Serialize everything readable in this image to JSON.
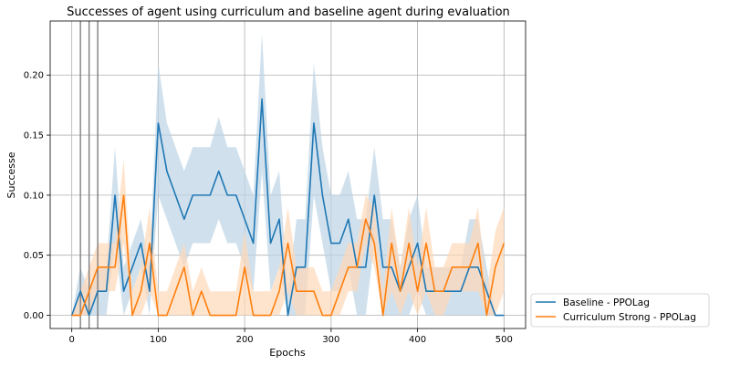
{
  "chart_data": {
    "type": "line",
    "title": "Successes of agent using curriculum and baseline agent during evaluation",
    "xlabel": "Epochs",
    "ylabel": "Successe",
    "xlim": [
      -25,
      525
    ],
    "ylim": [
      -0.011,
      0.245
    ],
    "xticks": [
      0,
      100,
      200,
      300,
      400,
      500
    ],
    "yticks": [
      0.0,
      0.05,
      0.1,
      0.15,
      0.2
    ],
    "xtick_labels": [
      "0",
      "100",
      "200",
      "300",
      "400",
      "500"
    ],
    "ytick_labels": [
      "0.00",
      "0.05",
      "0.10",
      "0.15",
      "0.20"
    ],
    "grid": true,
    "legend_position": "outside-bottom-right",
    "vertical_markers": [
      10,
      20,
      30
    ],
    "x": [
      0,
      10,
      20,
      30,
      40,
      50,
      60,
      70,
      80,
      90,
      100,
      110,
      120,
      130,
      140,
      150,
      160,
      170,
      180,
      190,
      200,
      210,
      220,
      230,
      240,
      250,
      260,
      270,
      280,
      290,
      300,
      310,
      320,
      330,
      340,
      350,
      360,
      370,
      380,
      390,
      400,
      410,
      420,
      430,
      440,
      450,
      460,
      470,
      480,
      490,
      500
    ],
    "series": [
      {
        "name": "Baseline - PPOLag",
        "color": "#1f77b4",
        "band_color": "#bcd4e6",
        "values": [
          0.0,
          0.02,
          0.0,
          0.02,
          0.02,
          0.1,
          0.02,
          0.04,
          0.06,
          0.02,
          0.16,
          0.12,
          0.1,
          0.08,
          0.1,
          0.1,
          0.1,
          0.12,
          0.1,
          0.1,
          0.08,
          0.06,
          0.18,
          0.06,
          0.08,
          0.0,
          0.04,
          0.04,
          0.16,
          0.1,
          0.06,
          0.06,
          0.08,
          0.04,
          0.04,
          0.1,
          0.04,
          0.04,
          0.02,
          0.04,
          0.06,
          0.02,
          0.02,
          0.02,
          0.02,
          0.02,
          0.04,
          0.04,
          0.02,
          0.0,
          0.0
        ],
        "lower": [
          0.0,
          0.0,
          0.0,
          0.0,
          0.0,
          0.06,
          0.0,
          0.02,
          0.04,
          0.0,
          0.1,
          0.08,
          0.06,
          0.04,
          0.06,
          0.06,
          0.06,
          0.08,
          0.06,
          0.06,
          0.04,
          0.02,
          0.12,
          0.02,
          0.04,
          0.0,
          0.0,
          0.0,
          0.1,
          0.06,
          0.02,
          0.02,
          0.04,
          0.0,
          0.0,
          0.06,
          0.0,
          0.0,
          0.0,
          0.0,
          0.02,
          0.0,
          0.0,
          0.0,
          0.0,
          0.0,
          0.0,
          0.0,
          0.0,
          0.0,
          0.0
        ],
        "upper": [
          0.0,
          0.04,
          0.02,
          0.04,
          0.04,
          0.14,
          0.04,
          0.06,
          0.08,
          0.04,
          0.21,
          0.16,
          0.14,
          0.12,
          0.14,
          0.14,
          0.14,
          0.165,
          0.14,
          0.14,
          0.12,
          0.1,
          0.235,
          0.1,
          0.12,
          0.02,
          0.08,
          0.08,
          0.21,
          0.14,
          0.1,
          0.1,
          0.12,
          0.08,
          0.08,
          0.14,
          0.08,
          0.08,
          0.04,
          0.08,
          0.1,
          0.04,
          0.04,
          0.04,
          0.04,
          0.04,
          0.08,
          0.08,
          0.04,
          0.0,
          0.0
        ]
      },
      {
        "name": "Curriculum Strong - PPOLag",
        "color": "#ff7f0e",
        "band_color": "#ffd9b8",
        "values": [
          0.0,
          0.0,
          0.02,
          0.04,
          0.04,
          0.04,
          0.1,
          0.0,
          0.02,
          0.06,
          0.0,
          0.0,
          0.02,
          0.04,
          0.0,
          0.02,
          0.0,
          0.0,
          0.0,
          0.0,
          0.04,
          0.0,
          0.0,
          0.0,
          0.02,
          0.06,
          0.02,
          0.02,
          0.02,
          0.0,
          0.0,
          0.02,
          0.04,
          0.04,
          0.08,
          0.06,
          0.0,
          0.06,
          0.02,
          0.06,
          0.02,
          0.06,
          0.02,
          0.02,
          0.04,
          0.04,
          0.04,
          0.06,
          0.0,
          0.04,
          0.06
        ],
        "lower": [
          0.0,
          0.0,
          0.0,
          0.02,
          0.02,
          0.02,
          0.06,
          0.0,
          0.0,
          0.02,
          0.0,
          0.0,
          0.0,
          0.0,
          0.0,
          0.0,
          0.0,
          0.0,
          0.0,
          0.0,
          0.0,
          0.0,
          0.0,
          0.0,
          0.0,
          0.02,
          0.0,
          0.0,
          0.0,
          0.0,
          0.0,
          0.0,
          0.02,
          0.02,
          0.06,
          0.04,
          0.0,
          0.02,
          0.0,
          0.02,
          0.0,
          0.02,
          0.0,
          0.0,
          0.02,
          0.02,
          0.02,
          0.02,
          0.0,
          0.0,
          0.02
        ],
        "upper": [
          0.0,
          0.02,
          0.04,
          0.06,
          0.06,
          0.06,
          0.13,
          0.02,
          0.04,
          0.09,
          0.02,
          0.02,
          0.04,
          0.06,
          0.02,
          0.04,
          0.02,
          0.02,
          0.02,
          0.02,
          0.07,
          0.02,
          0.02,
          0.02,
          0.04,
          0.09,
          0.04,
          0.04,
          0.04,
          0.02,
          0.02,
          0.04,
          0.06,
          0.06,
          0.1,
          0.09,
          0.02,
          0.09,
          0.04,
          0.09,
          0.04,
          0.09,
          0.04,
          0.04,
          0.06,
          0.06,
          0.06,
          0.09,
          0.02,
          0.07,
          0.09
        ]
      }
    ]
  }
}
